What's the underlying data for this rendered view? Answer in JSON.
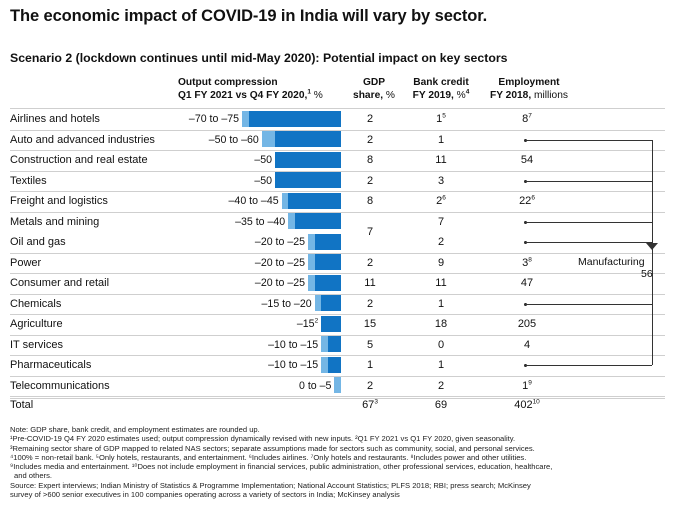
{
  "title": "The economic impact of COVID-19 in India will vary by sector.",
  "subtitle": "Scenario 2 (lockdown continues until mid-May 2020): Potential impact on key sectors",
  "headers": {
    "output_line1": "Output compression",
    "output_line2": "Q1 FY 2021 vs Q4 FY 2020,",
    "output_sup": "1",
    "output_unit": " %",
    "gdp_line1": "GDP",
    "gdp_line2": "share,",
    "gdp_unit": " %",
    "credit_line1": "Bank credit",
    "credit_line2": "FY 2019,",
    "credit_unit": " %",
    "credit_sup": "4",
    "emp_line1": "Employment",
    "emp_line2": "FY 2018,",
    "emp_unit": " millions"
  },
  "chart_data": {
    "type": "bar",
    "title": "Scenario 2 (lockdown continues until mid-May 2020): Potential impact on key sectors",
    "xlabel": "Output compression Q1 FY 2021 vs Q4 FY 2020, %",
    "xlim": [
      0,
      75
    ],
    "colors": {
      "range_low": "#74b6e5",
      "range_high": "#1174c4"
    },
    "rows": [
      {
        "sector": "Airlines and hotels",
        "range_label": "–70 to –75",
        "low": 70,
        "high": 75,
        "gdp": "2",
        "credit": "1",
        "credit_sup": "5",
        "employment": "8",
        "employment_sup": "7",
        "manufacturing": false
      },
      {
        "sector": "Auto and advanced industries",
        "range_label": "–50 to –60",
        "low": 50,
        "high": 60,
        "gdp": "2",
        "credit": "1",
        "credit_sup": "",
        "employment": "",
        "employment_sup": "",
        "manufacturing": true
      },
      {
        "sector": "Construction and real estate",
        "range_label": "–50",
        "low": 50,
        "high": 50,
        "gdp": "8",
        "credit": "11",
        "credit_sup": "",
        "employment": "54",
        "employment_sup": "",
        "manufacturing": false
      },
      {
        "sector": "Textiles",
        "range_label": "–50",
        "low": 50,
        "high": 50,
        "gdp": "2",
        "credit": "3",
        "credit_sup": "",
        "employment": "",
        "employment_sup": "",
        "manufacturing": true
      },
      {
        "sector": "Freight and logistics",
        "range_label": "–40 to –45",
        "low": 40,
        "high": 45,
        "gdp": "8",
        "credit": "2",
        "credit_sup": "6",
        "employment": "22",
        "employment_sup": "6",
        "manufacturing": false
      },
      {
        "sector": "Metals and mining",
        "range_label": "–35 to –40",
        "low": 35,
        "high": 40,
        "gdp": "",
        "credit": "7",
        "credit_sup": "",
        "employment": "",
        "employment_sup": "",
        "manufacturing": true
      },
      {
        "sector": "Oil and gas",
        "range_label": "–20 to –25",
        "low": 20,
        "high": 25,
        "gdp": "",
        "credit": "2",
        "credit_sup": "",
        "employment": "",
        "employment_sup": "",
        "manufacturing": true
      },
      {
        "sector": "Power",
        "range_label": "–20 to –25",
        "low": 20,
        "high": 25,
        "gdp": "2",
        "credit": "9",
        "credit_sup": "",
        "employment": "3",
        "employment_sup": "8",
        "manufacturing": false
      },
      {
        "sector": "Consumer and retail",
        "range_label": "–20 to –25",
        "low": 20,
        "high": 25,
        "gdp": "11",
        "credit": "11",
        "credit_sup": "",
        "employment": "47",
        "employment_sup": "",
        "manufacturing": false
      },
      {
        "sector": "Chemicals",
        "range_label": "–15 to –20",
        "low": 15,
        "high": 20,
        "gdp": "2",
        "credit": "1",
        "credit_sup": "",
        "employment": "",
        "employment_sup": "",
        "manufacturing": true
      },
      {
        "sector": "Agriculture",
        "range_label": "–15",
        "range_sup": "2",
        "low": 15,
        "high": 15,
        "gdp": "15",
        "credit": "18",
        "credit_sup": "",
        "employment": "205",
        "employment_sup": "",
        "manufacturing": false
      },
      {
        "sector": "IT services",
        "range_label": "–10 to –15",
        "low": 10,
        "high": 15,
        "gdp": "5",
        "credit": "0",
        "credit_sup": "",
        "employment": "4",
        "employment_sup": "",
        "manufacturing": false
      },
      {
        "sector": "Pharmaceuticals",
        "range_label": "–10 to –15",
        "low": 10,
        "high": 15,
        "gdp": "1",
        "credit": "1",
        "credit_sup": "",
        "employment": "",
        "employment_sup": "",
        "manufacturing": true
      },
      {
        "sector": "Telecommunications",
        "range_label": "0 to –5",
        "low": 0,
        "high": 5,
        "gdp": "2",
        "credit": "2",
        "credit_sup": "",
        "employment": "1",
        "employment_sup": "9",
        "manufacturing": false
      }
    ],
    "merged_gdp": {
      "rows": [
        "Metals and mining",
        "Oil and gas"
      ],
      "value": "7"
    },
    "total": {
      "label": "Total",
      "gdp": "67",
      "gdp_sup": "3",
      "credit": "69",
      "employment": "402",
      "employment_sup": "10"
    },
    "manufacturing": {
      "label": "Manufacturing",
      "value": "56"
    }
  },
  "notes": [
    "Note: GDP share, bank credit, and employment estimates are rounded up.",
    "¹Pre-COVID-19 Q4 FY 2020 estimates used; output compression dynamically revised with new inputs. ²Q1 FY 2021 vs Q1 FY 2020, given seasonality.",
    "³Remaining sector share of GDP mapped to related NAS sectors; separate assumptions made for sectors such as community, social, and personal services.",
    "⁴100% = non-retail bank. ⁵Only hotels, restaurants, and entertainment. ⁶Includes airlines. ⁷Only hotels and restaurants. ⁸Includes power and other utilities.",
    "⁹Includes media and entertainment. ¹⁰Does not include employment in financial services, public administration, other professional services, education, healthcare,",
    "and others.",
    "Source: Expert interviews; Indian Ministry of Statistics & Programme Implementation; National Account Statistics; PLFS 2018; RBI; press search; McKinsey",
    "survey of >600 senior executives in 100 companies operating across a variety of sectors in India; McKinsey analysis"
  ]
}
